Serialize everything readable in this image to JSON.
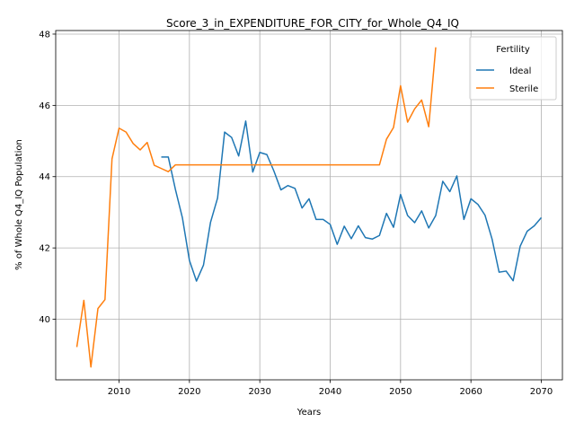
{
  "chart_data": {
    "type": "line",
    "title": "Score_3_in_EXPENDITURE_FOR_CITY_for_Whole_Q4_IQ",
    "xlabel": "Years",
    "ylabel": "% of Whole Q4_IQ Population",
    "xlim": [
      2001,
      2073
    ],
    "ylim": [
      38.3,
      48.1
    ],
    "xticks": [
      2010,
      2020,
      2030,
      2040,
      2050,
      2060,
      2070
    ],
    "yticks": [
      40,
      42,
      44,
      46,
      48
    ],
    "grid": true,
    "legend": {
      "title": "Fertility",
      "placement": "top-right"
    },
    "series": [
      {
        "name": "Ideal",
        "color": "#1f77b4",
        "x": [
          2016,
          2017,
          2018,
          2019,
          2020,
          2021,
          2022,
          2023,
          2024,
          2025,
          2026,
          2027,
          2028,
          2029,
          2030,
          2031,
          2032,
          2033,
          2034,
          2035,
          2036,
          2037,
          2038,
          2039,
          2040,
          2041,
          2042,
          2043,
          2044,
          2045,
          2046,
          2047,
          2048,
          2049,
          2050,
          2051,
          2052,
          2053,
          2054,
          2055,
          2056,
          2057,
          2058,
          2059,
          2060,
          2061,
          2062,
          2063,
          2064,
          2065,
          2066,
          2067,
          2068,
          2069,
          2070
        ],
        "y": [
          44.55,
          44.55,
          43.65,
          42.85,
          41.65,
          41.07,
          41.52,
          42.72,
          43.4,
          45.25,
          45.1,
          44.58,
          45.56,
          44.13,
          44.68,
          44.62,
          44.16,
          43.63,
          43.75,
          43.67,
          43.12,
          43.38,
          42.8,
          42.8,
          42.66,
          42.1,
          42.61,
          42.26,
          42.62,
          42.29,
          42.25,
          42.35,
          42.97,
          42.58,
          43.5,
          42.91,
          42.71,
          43.04,
          42.56,
          42.91,
          43.87,
          43.58,
          44.02,
          42.8,
          43.38,
          43.22,
          42.92,
          42.25,
          41.32,
          41.35,
          41.08,
          42.05,
          42.47,
          42.62,
          42.85
        ]
      },
      {
        "name": "Sterile",
        "color": "#ff7f0e",
        "x": [
          2004,
          2005,
          2006,
          2007,
          2008,
          2009,
          2010,
          2011,
          2012,
          2013,
          2014,
          2015,
          2016,
          2017,
          2018,
          2019,
          2020,
          2021,
          2022,
          2023,
          2024,
          2025,
          2026,
          2027,
          2028,
          2029,
          2030,
          2031,
          2032,
          2033,
          2034,
          2035,
          2036,
          2037,
          2038,
          2039,
          2040,
          2041,
          2042,
          2043,
          2044,
          2045,
          2046,
          2047,
          2048,
          2049,
          2050,
          2051,
          2052,
          2053,
          2054,
          2055
        ],
        "y": [
          39.22,
          40.53,
          38.66,
          40.3,
          40.55,
          44.5,
          45.36,
          45.25,
          44.93,
          44.75,
          44.96,
          44.32,
          44.23,
          44.14,
          44.33,
          44.33,
          44.33,
          44.33,
          44.33,
          44.33,
          44.33,
          44.33,
          44.33,
          44.33,
          44.33,
          44.33,
          44.33,
          44.33,
          44.33,
          44.33,
          44.33,
          44.33,
          44.33,
          44.33,
          44.33,
          44.33,
          44.33,
          44.33,
          44.33,
          44.33,
          44.33,
          44.33,
          44.33,
          44.33,
          45.05,
          45.38,
          46.55,
          45.53,
          45.9,
          46.15,
          45.4,
          47.63
        ]
      }
    ]
  }
}
